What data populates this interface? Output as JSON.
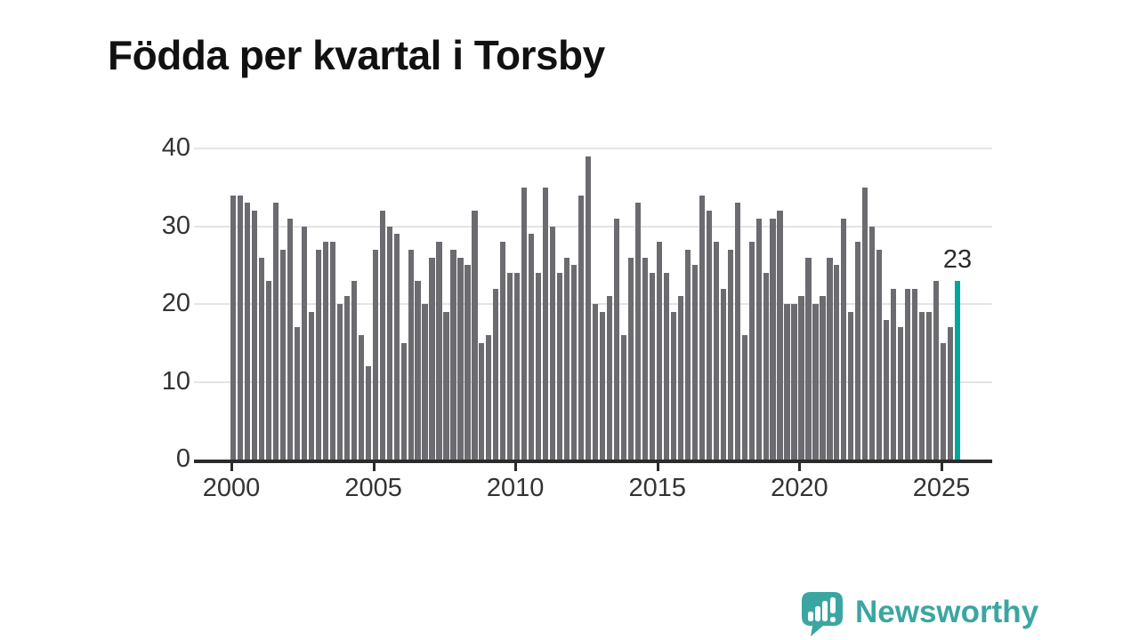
{
  "title": "Födda per kvartal i Torsby",
  "annotation": {
    "label": "23"
  },
  "logo": {
    "text": "Newsworthy"
  },
  "colors": {
    "bar": "#6b6b70",
    "highlight": "#00a79d",
    "logo_teal": "#3ba6a1",
    "grid": "#e4e4e4",
    "axis": "#2b2b2b",
    "text": "#333333"
  },
  "chart_data": {
    "type": "bar",
    "title": "Födda per kvartal i Torsby",
    "x_period": "quarterly",
    "x_range": [
      "2000Q1",
      "2025Q3"
    ],
    "x_tick_labels": [
      "2000",
      "2005",
      "2010",
      "2015",
      "2020",
      "2025"
    ],
    "x_tick_indices": [
      0,
      20,
      40,
      60,
      80,
      100
    ],
    "ylim": [
      0,
      42
    ],
    "yticks": [
      0,
      10,
      20,
      30,
      40
    ],
    "grid": true,
    "legend": "none",
    "values": [
      34,
      34,
      33,
      32,
      26,
      23,
      33,
      27,
      31,
      17,
      30,
      19,
      27,
      28,
      28,
      20,
      21,
      23,
      16,
      12,
      27,
      32,
      30,
      29,
      15,
      27,
      23,
      20,
      26,
      28,
      19,
      27,
      26,
      25,
      32,
      15,
      16,
      22,
      28,
      24,
      24,
      35,
      29,
      24,
      35,
      30,
      24,
      26,
      25,
      34,
      39,
      20,
      19,
      21,
      31,
      16,
      26,
      33,
      26,
      24,
      28,
      24,
      19,
      21,
      27,
      25,
      34,
      32,
      28,
      22,
      27,
      33,
      16,
      28,
      31,
      24,
      31,
      32,
      20,
      20,
      21,
      26,
      20,
      21,
      26,
      25,
      31,
      19,
      28,
      35,
      30,
      27,
      18,
      22,
      17,
      22,
      22,
      19,
      19,
      23,
      15,
      17,
      23
    ],
    "highlight_index": 102,
    "highlight_value_label": "23"
  }
}
